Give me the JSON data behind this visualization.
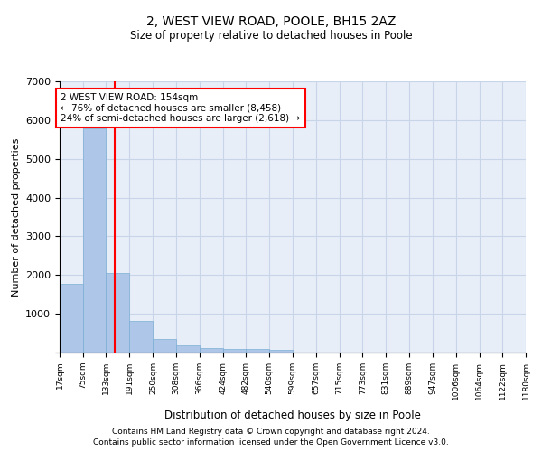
{
  "title": "2, WEST VIEW ROAD, POOLE, BH15 2AZ",
  "subtitle": "Size of property relative to detached houses in Poole",
  "xlabel": "Distribution of detached houses by size in Poole",
  "ylabel": "Number of detached properties",
  "bar_color": "#aec6e8",
  "bar_edgecolor": "#7bafd4",
  "grid_color": "#c8d4e8",
  "background_color": "#e8eef8",
  "annotation_text": "2 WEST VIEW ROAD: 154sqm\n← 76% of detached houses are smaller (8,458)\n24% of semi-detached houses are larger (2,618) →",
  "annotation_box_edgecolor": "red",
  "vline_x": 154,
  "vline_color": "red",
  "footnote1": "Contains HM Land Registry data © Crown copyright and database right 2024.",
  "footnote2": "Contains public sector information licensed under the Open Government Licence v3.0.",
  "bins": [
    17,
    75,
    133,
    191,
    250,
    308,
    366,
    424,
    482,
    540,
    599,
    657,
    715,
    773,
    831,
    889,
    947,
    1006,
    1064,
    1122,
    1180
  ],
  "counts": [
    1780,
    5780,
    2060,
    820,
    350,
    190,
    120,
    100,
    90,
    70,
    0,
    0,
    0,
    0,
    0,
    0,
    0,
    0,
    0,
    0
  ],
  "ylim": [
    0,
    7000
  ],
  "tick_labels": [
    "17sqm",
    "75sqm",
    "133sqm",
    "191sqm",
    "250sqm",
    "308sqm",
    "366sqm",
    "424sqm",
    "482sqm",
    "540sqm",
    "599sqm",
    "657sqm",
    "715sqm",
    "773sqm",
    "831sqm",
    "889sqm",
    "947sqm",
    "1006sqm",
    "1064sqm",
    "1122sqm",
    "1180sqm"
  ]
}
